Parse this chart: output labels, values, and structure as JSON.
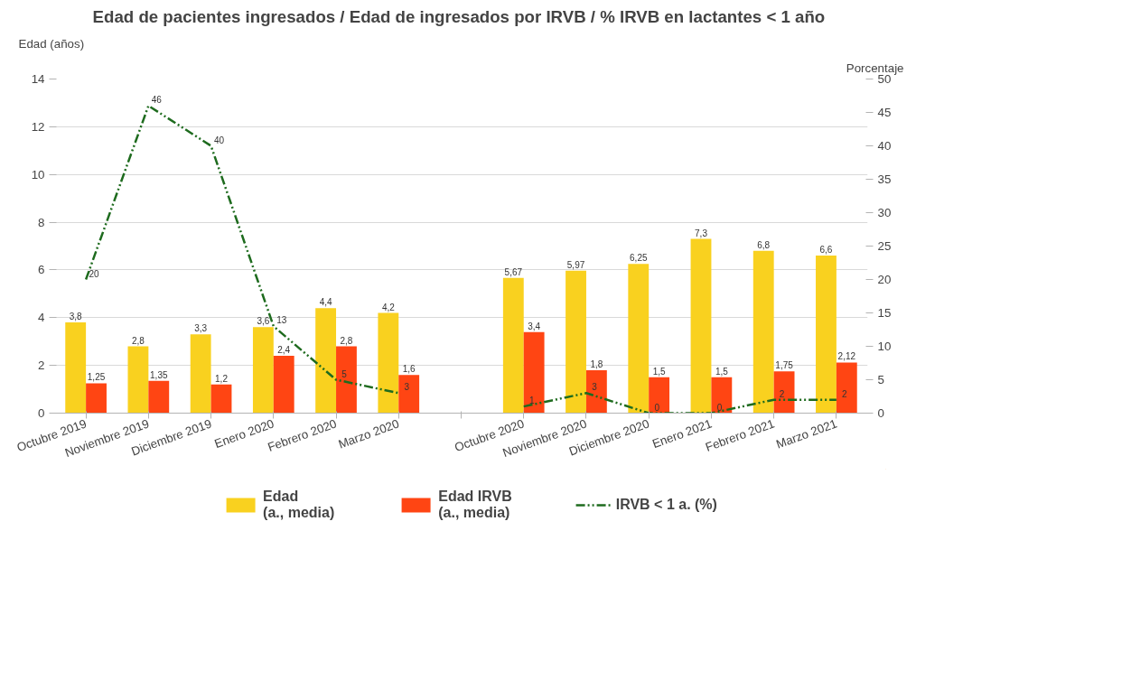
{
  "chart_data": {
    "type": "bar",
    "title": "Edad de pacientes ingresados / Edad de ingresados por IRVB  / % IRVB en lactantes < 1 año",
    "categories": [
      "Octubre 2019",
      "Noviembre 2019",
      "Diciembre 2019",
      "Enero 2020",
      "Febrero 2020",
      "Marzo 2020",
      null,
      "Octubre 2020",
      "Noviembre 2020",
      "Diciembre 2020",
      "Enero 2021",
      "Febrero 2021",
      "Marzo 2021"
    ],
    "series": [
      {
        "name": "Edad\n(a., media)",
        "color": "#f9d11f",
        "values": [
          3.8,
          2.8,
          3.3,
          3.6,
          4.4,
          4.2,
          null,
          5.67,
          5.97,
          6.25,
          7.3,
          6.8,
          6.6
        ],
        "value_labels": [
          "3,8",
          "2,8",
          "3,3",
          "3,6",
          "4,4",
          "4,2",
          null,
          "5,67",
          "5,97",
          "6,25",
          "7,3",
          "6,8",
          "6,6"
        ]
      },
      {
        "name": "Edad IRVB\n(a., media)",
        "color": "#ff4513",
        "values": [
          1.25,
          1.35,
          1.2,
          2.4,
          2.8,
          1.6,
          null,
          3.4,
          1.8,
          1.5,
          1.5,
          1.75,
          2.12
        ],
        "value_labels": [
          "1,25",
          "1,35",
          "1,2",
          "2,4",
          "2,8",
          "1,6",
          null,
          "3,4",
          "1,8",
          "1,5",
          "1,5",
          "1,75",
          "2,12"
        ]
      },
      {
        "name": "IRVB < 1 a. (%)",
        "type": "line",
        "axis": "y2",
        "color": "#1e6b1e",
        "line_style": "dashed",
        "values": [
          20,
          46,
          40,
          13,
          5,
          3,
          null,
          1,
          3,
          0,
          0,
          2,
          2
        ],
        "value_labels": [
          "20",
          "46",
          "40",
          "13",
          "5",
          "3",
          null,
          "1",
          "3",
          "0",
          "0",
          "2",
          "2"
        ]
      }
    ],
    "ylabel": "Edad (años)",
    "y2label": "Porcentaje",
    "ylim": [
      0,
      14
    ],
    "yticks": [
      0,
      2,
      4,
      6,
      8,
      10,
      12,
      14
    ],
    "y2lim": [
      0,
      50
    ],
    "y2ticks": [
      0,
      5,
      10,
      15,
      20,
      25,
      30,
      35,
      40,
      45,
      50
    ],
    "grid": "y",
    "legend": "bottom"
  }
}
